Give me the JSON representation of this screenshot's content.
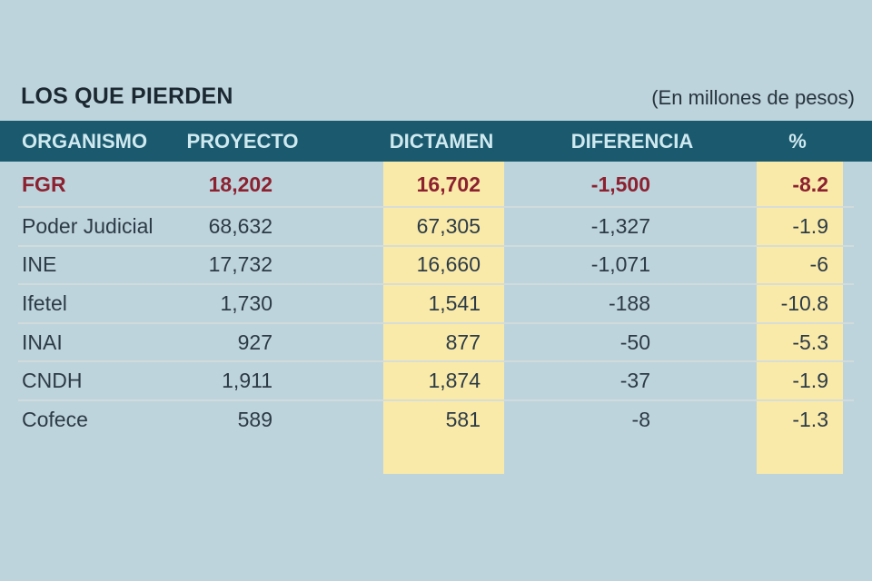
{
  "title": "LOS QUE PIERDEN",
  "subtitle": "(En millones de pesos)",
  "columns": [
    "ORGANISMO",
    "PROYECTO",
    "DICTAMEN",
    "DIFERENCIA",
    "%"
  ],
  "rows": [
    {
      "organismo": "FGR",
      "proyecto": "18,202",
      "dictamen": "16,702",
      "diferencia": "-1,500",
      "pct": "-8.2"
    },
    {
      "organismo": "Poder Judicial",
      "proyecto": "68,632",
      "dictamen": "67,305",
      "diferencia": "-1,327",
      "pct": "-1.9"
    },
    {
      "organismo": "INE",
      "proyecto": "17,732",
      "dictamen": "16,660",
      "diferencia": "-1,071",
      "pct": "-6"
    },
    {
      "organismo": "Ifetel",
      "proyecto": "1,730",
      "dictamen": "1,541",
      "diferencia": "-188",
      "pct": "-10.8"
    },
    {
      "organismo": "INAI",
      "proyecto": "927",
      "dictamen": "877",
      "diferencia": "-50",
      "pct": "-5.3"
    },
    {
      "organismo": "CNDH",
      "proyecto": "1,911",
      "dictamen": "1,874",
      "diferencia": "-37",
      "pct": "-1.9"
    },
    {
      "organismo": "Cofece",
      "proyecto": "589",
      "dictamen": "581",
      "diferencia": "-8",
      "pct": "-1.3"
    }
  ],
  "colors": {
    "background": "#bed4dd",
    "header_bg": "#1b5a6e",
    "header_text": "#cfe9f0",
    "highlight_column": "#faeaa9",
    "emphasis_text": "#8c2130",
    "body_text": "#2c3b46"
  },
  "chart_data": {
    "type": "table",
    "title": "LOS QUE PIERDEN",
    "subtitle": "(En millones de pesos)",
    "columns": [
      "ORGANISMO",
      "PROYECTO",
      "DICTAMEN",
      "DIFERENCIA",
      "%"
    ],
    "highlighted_columns": [
      "DICTAMEN",
      "%"
    ],
    "emphasized_row": "FGR",
    "rows": [
      [
        "FGR",
        18202,
        16702,
        -1500,
        -8.2
      ],
      [
        "Poder Judicial",
        68632,
        67305,
        -1327,
        -1.9
      ],
      [
        "INE",
        17732,
        16660,
        -1071,
        -6
      ],
      [
        "Ifetel",
        1730,
        1541,
        -188,
        -10.8
      ],
      [
        "INAI",
        927,
        877,
        -50,
        -5.3
      ],
      [
        "CNDH",
        1911,
        1874,
        -37,
        -1.9
      ],
      [
        "Cofece",
        589,
        581,
        -8,
        -1.3
      ]
    ]
  }
}
